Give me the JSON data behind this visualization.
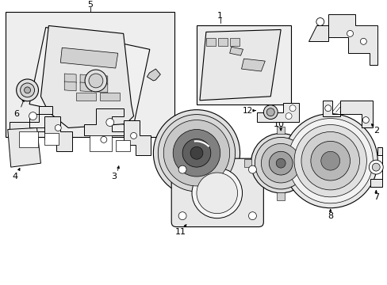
{
  "bg": "#ffffff",
  "lc": "#000000",
  "gray_light": "#e8e8e8",
  "gray_mid": "#d0d0d0",
  "gray_dark": "#b0b0b0",
  "box_bg": "#eeeeee"
}
